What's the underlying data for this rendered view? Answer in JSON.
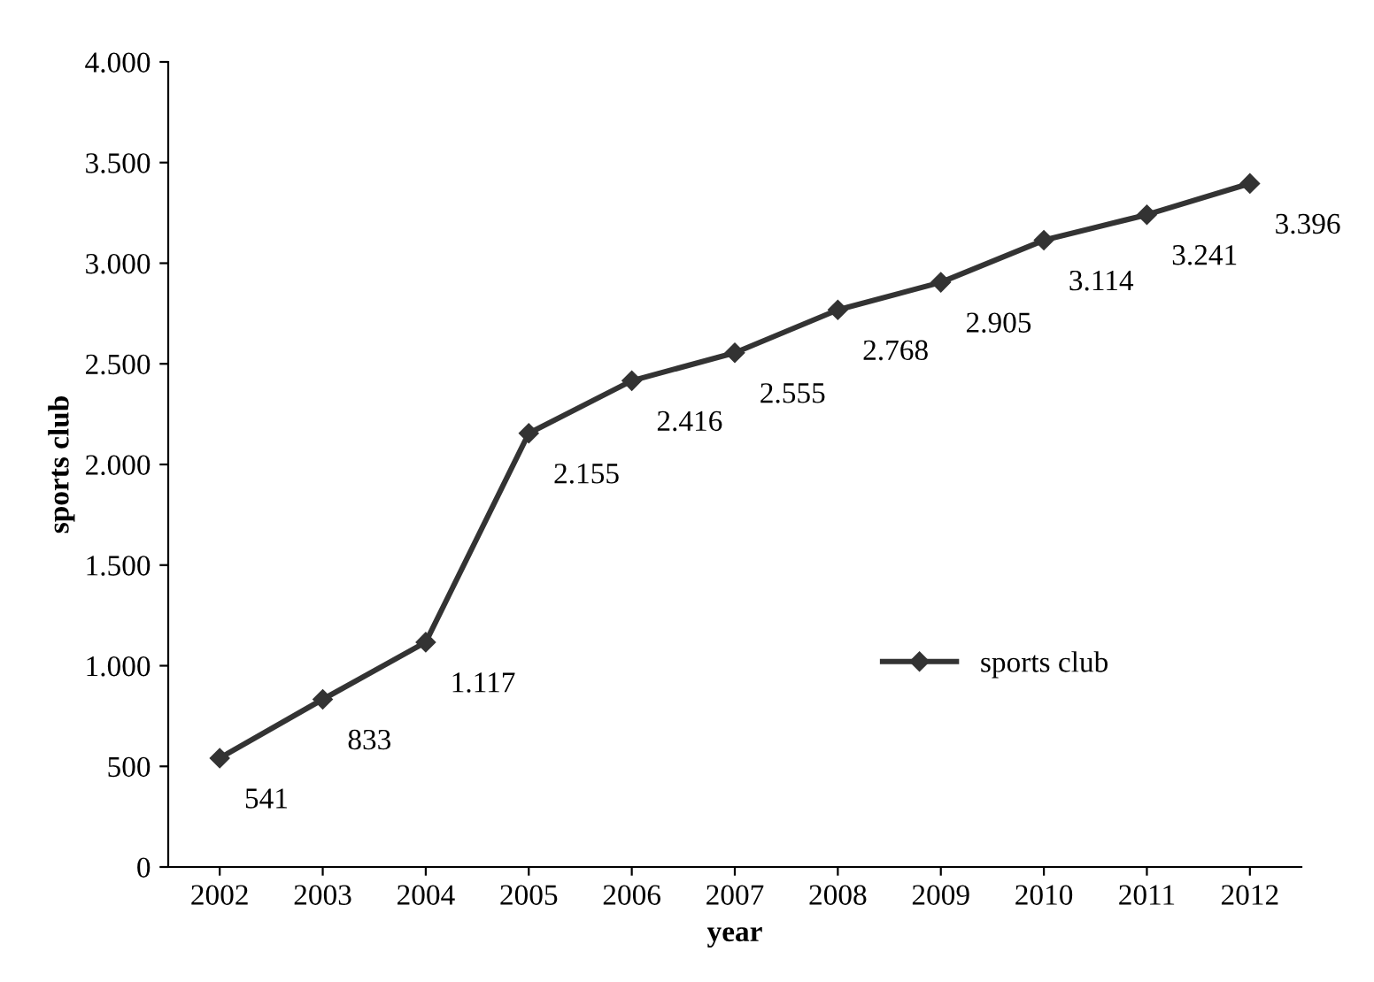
{
  "chart_data": {
    "type": "line",
    "xlabel": "year",
    "ylabel": "sports club",
    "categories": [
      "2002",
      "2003",
      "2004",
      "2005",
      "2006",
      "2007",
      "2008",
      "2009",
      "2010",
      "2011",
      "2012"
    ],
    "series": [
      {
        "name": "sports club",
        "color": "#333333",
        "values": [
          541,
          833,
          1117,
          2155,
          2416,
          2555,
          2768,
          2905,
          3114,
          3241,
          3396
        ],
        "value_labels": [
          "541",
          "833",
          "1.117",
          "2.155",
          "2.416",
          "2.555",
          "2.768",
          "2.905",
          "3.114",
          "3.241",
          "3.396"
        ]
      }
    ],
    "ylim": [
      0,
      4000
    ],
    "yticks": [
      0,
      {
        "value": 500,
        "label": "500"
      },
      {
        "value": 1000,
        "label": "1.000"
      },
      {
        "value": 1500,
        "label": "1.500"
      },
      {
        "value": 2000,
        "label": "2.000"
      },
      {
        "value": 2500,
        "label": "2.500"
      },
      {
        "value": 3000,
        "label": "3.000"
      },
      {
        "value": 3500,
        "label": "3.500"
      },
      {
        "value": 4000,
        "label": "4.000"
      }
    ],
    "grid": false,
    "legend": "right",
    "marker": "diamond",
    "line_style": "solid"
  }
}
